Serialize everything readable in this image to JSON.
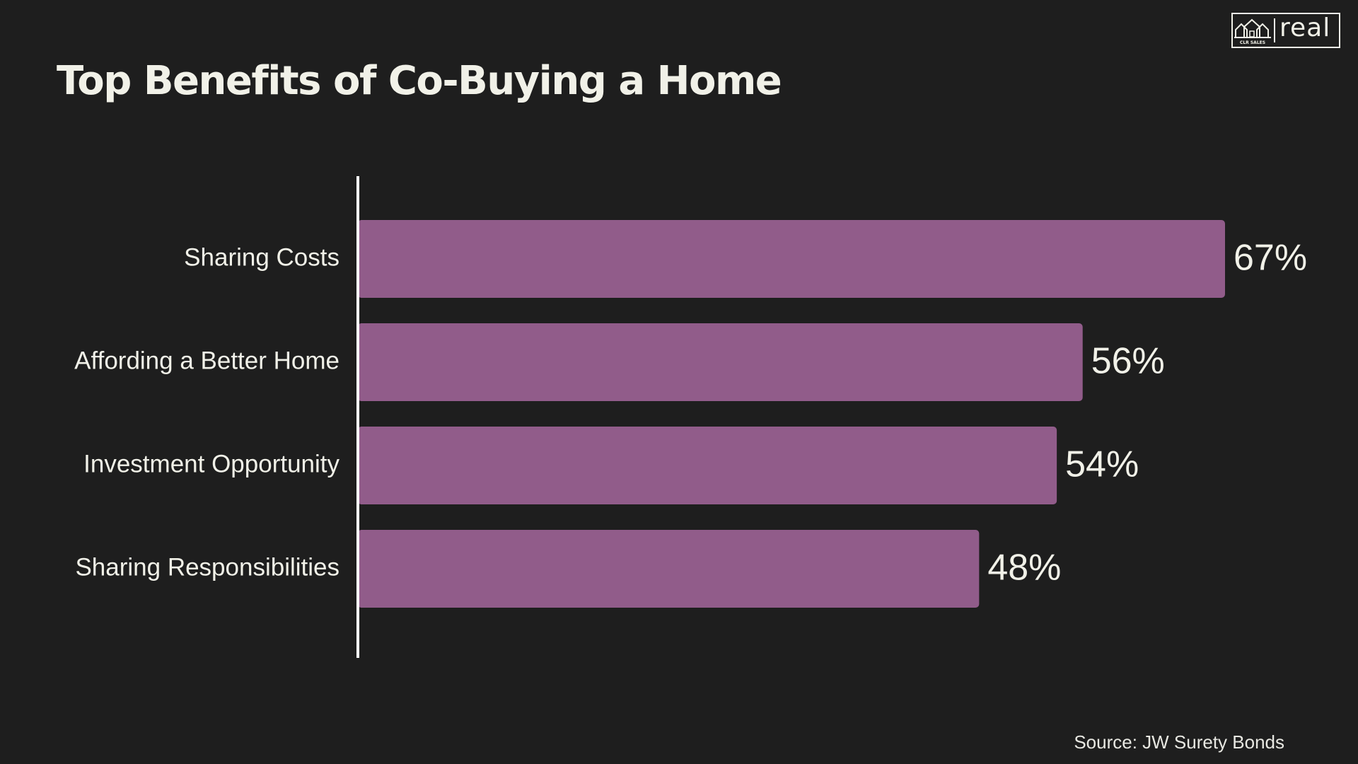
{
  "title": "Top Benefits of Co-Buying a Home",
  "logo": {
    "tagline": "CLR SALES",
    "wordmark": "real"
  },
  "source": "Source: JW Surety Bonds",
  "colors": {
    "background": "#1e1e1e",
    "bar": "#915c8a",
    "text": "#f1f1e8",
    "axis": "#ffffff"
  },
  "chart_data": {
    "type": "bar",
    "orientation": "horizontal",
    "categories": [
      "Sharing Costs",
      "Affording a Better Home",
      "Investment Opportunity",
      "Sharing Responsibilities"
    ],
    "values": [
      67,
      56,
      54,
      48
    ],
    "value_labels": [
      "67%",
      "56%",
      "54%",
      "48%"
    ],
    "unit": "%",
    "xlim": [
      0,
      67
    ],
    "grid": false,
    "legend": "none"
  }
}
